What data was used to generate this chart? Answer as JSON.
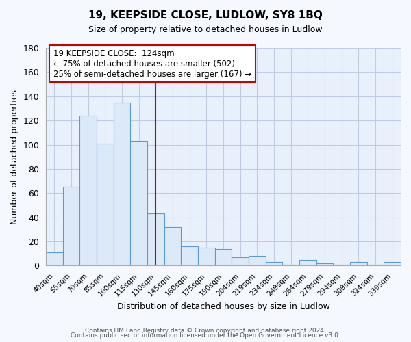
{
  "title": "19, KEEPSIDE CLOSE, LUDLOW, SY8 1BQ",
  "subtitle": "Size of property relative to detached houses in Ludlow",
  "xlabel": "Distribution of detached houses by size in Ludlow",
  "ylabel": "Number of detached properties",
  "bar_labels": [
    "40sqm",
    "55sqm",
    "70sqm",
    "85sqm",
    "100sqm",
    "115sqm",
    "130sqm",
    "145sqm",
    "160sqm",
    "175sqm",
    "190sqm",
    "204sqm",
    "219sqm",
    "234sqm",
    "249sqm",
    "264sqm",
    "279sqm",
    "294sqm",
    "309sqm",
    "324sqm",
    "339sqm"
  ],
  "bar_values": [
    11,
    65,
    124,
    101,
    135,
    103,
    43,
    32,
    16,
    15,
    14,
    7,
    8,
    3,
    1,
    5,
    2,
    1,
    3,
    1,
    3
  ],
  "bar_color": "#dce9f8",
  "bar_edge_color": "#5b9bd5",
  "ylim": [
    0,
    180
  ],
  "yticks": [
    0,
    20,
    40,
    60,
    80,
    100,
    120,
    140,
    160,
    180
  ],
  "vline_x": 6.0,
  "vline_color": "#cc0000",
  "annotation_title": "19 KEEPSIDE CLOSE:  124sqm",
  "annotation_line1": "← 75% of detached houses are smaller (502)",
  "annotation_line2": "25% of semi-detached houses are larger (167) →",
  "footer1": "Contains HM Land Registry data © Crown copyright and database right 2024.",
  "footer2": "Contains public sector information licensed under the Open Government Licence v3.0.",
  "plot_bg_color": "#e8f0fb",
  "fig_bg_color": "#f5f8ff",
  "grid_color": "#c0cce0"
}
